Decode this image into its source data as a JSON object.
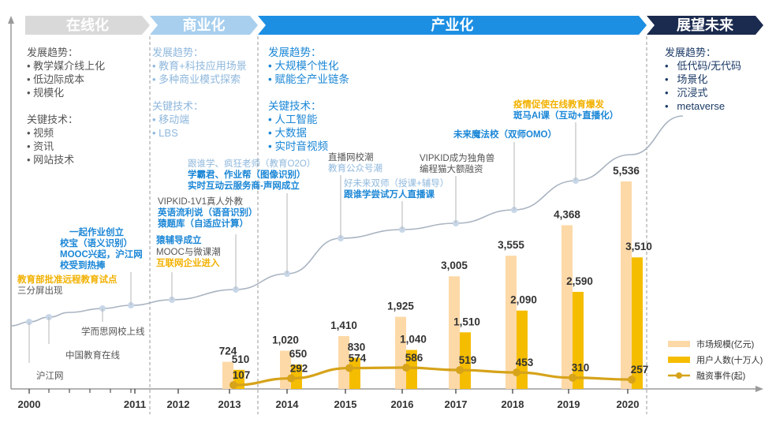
{
  "phases": [
    {
      "label": "在线化",
      "color": "#d9d9d9",
      "text_color": "#ffffff"
    },
    {
      "label": "商业化",
      "color": "#a8cfee",
      "text_color": "#ffffff"
    },
    {
      "label": "产业化",
      "color": "#1d8fe3",
      "text_color": "#ffffff"
    },
    {
      "label": "展望未来",
      "color": "#1b2b4f",
      "text_color": "#ffffff"
    }
  ],
  "phase_notes": {
    "online": [
      "发展趋势：",
      "• 教学媒介线上化",
      "• 低边际成本",
      "• 规模化",
      "",
      "关键技术：",
      "• 视频",
      "• 资讯",
      "• 网站技术"
    ],
    "commercial": [
      "发展趋势：",
      "• 教育+科技应用场景",
      "• 多种商业模式探索",
      "",
      "关键技术：",
      "• 移动端",
      "• LBS"
    ],
    "industrial": [
      "发展趋势：",
      "• 大规模个性化",
      "• 赋能全产业链条",
      "",
      "关键技术：",
      "• 人工智能",
      "• 大数据",
      "• 实时音视频"
    ],
    "future": [
      "发展趋势：",
      "•   低代码/无代码",
      "•   场景化",
      "•   沉浸式",
      "•   metaverse"
    ]
  },
  "events": [
    {
      "text": "沪江网",
      "style": "gray"
    },
    {
      "text": "中国教育在线",
      "style": "gray"
    },
    {
      "text": "学而思网校上线",
      "style": "gray"
    },
    {
      "text": "教育部批准远程教育试点",
      "style": "orange"
    },
    {
      "text": "三分屏出现",
      "style": "gray"
    },
    {
      "text": "一起作业创立",
      "style": "blue"
    },
    {
      "text": "校宝（语义识别）",
      "style": "blue"
    },
    {
      "text": "MOOC兴起，沪江网",
      "style": "blue"
    },
    {
      "text": "校受到热捧",
      "style": "blue"
    },
    {
      "text": "猿辅导成立",
      "style": "blue"
    },
    {
      "text": "MOOC与微课潮",
      "style": "gray"
    },
    {
      "text": "互联网企业进入",
      "style": "orange"
    },
    {
      "text": "VIPKID-1V1真人外教",
      "style": "gray"
    },
    {
      "text": "英语流利说（语音识别）",
      "style": "blue"
    },
    {
      "text": "猿题库（自适应计算）",
      "style": "blue"
    },
    {
      "text": "跟谁学、疯狂老师（教育O2O）",
      "style": "lblue"
    },
    {
      "text": "学霸君、作业帮（图像识别）",
      "style": "blue"
    },
    {
      "text": "实时互动云服务商-声网成立",
      "style": "blue"
    },
    {
      "text": "直播网校潮",
      "style": "gray"
    },
    {
      "text": "教育公众号潮",
      "style": "lblue"
    },
    {
      "text": "好未来双师（授课+辅导）",
      "style": "lblue"
    },
    {
      "text": "跟谁学尝试万人直播课",
      "style": "blue"
    },
    {
      "text": "VIPKID成为独角兽",
      "style": "gray"
    },
    {
      "text": "编程猫大额融资",
      "style": "gray"
    },
    {
      "text": "未来魔法校（双师OMO）",
      "style": "blue"
    },
    {
      "text": "疫情促使在线教育爆发",
      "style": "orange"
    },
    {
      "text": "斑马AI课（互动+直播化）",
      "style": "blue"
    }
  ],
  "chart_data": {
    "type": "bar",
    "categories": [
      "2013",
      "2014",
      "2015",
      "2016",
      "2017",
      "2018",
      "2019",
      "2020"
    ],
    "axis_ticks": [
      "2000",
      "2011",
      "2012",
      "2013",
      "2014",
      "2015",
      "2016",
      "2017",
      "2018",
      "2019",
      "2020"
    ],
    "series": [
      {
        "name": "市场规模(亿元)",
        "kind": "bar",
        "color": "#fdd9a8",
        "values": [
          724,
          1020,
          1410,
          1925,
          3005,
          3555,
          4368,
          5536
        ]
      },
      {
        "name": "用户人数(十万人)",
        "kind": "bar",
        "color": "#f5bd00",
        "values": [
          510,
          650,
          830,
          1040,
          1510,
          2090,
          2590,
          3510
        ]
      },
      {
        "name": "融资事件(起)",
        "kind": "line",
        "color": "#d6a31a",
        "values": [
          107,
          292,
          574,
          586,
          519,
          453,
          310,
          257
        ]
      }
    ],
    "legend_position": "bottom-right",
    "grid": false
  }
}
